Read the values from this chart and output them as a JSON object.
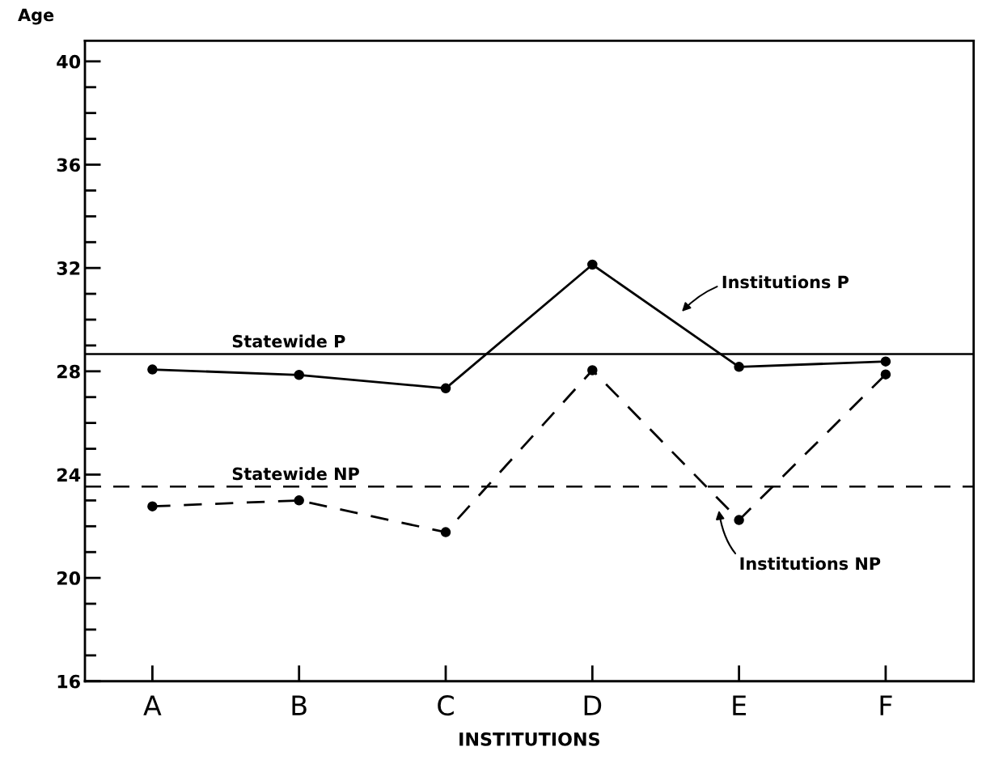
{
  "chart_data": {
    "type": "line",
    "xlabel": "INSTITUTIONS",
    "ylabel": "Age",
    "categories": [
      "A",
      "B",
      "C",
      "D",
      "E",
      "F"
    ],
    "series": [
      {
        "color": "#000000",
        "line_style": "solid",
        "values": [
          28.07,
          27.86,
          27.34,
          32.13,
          28.17,
          28.38
        ]
      },
      {
        "color": "#000000",
        "line_style": "dashed",
        "values": [
          22.77,
          23.0,
          21.77,
          28.04,
          22.24,
          27.88
        ]
      }
    ],
    "ylim": [
      16,
      40.8
    ],
    "yticks": [
      16,
      {
        "value": 17,
        "label": null
      },
      {
        "value": 18,
        "label": null
      },
      {
        "value": 19,
        "label": null
      },
      20,
      {
        "value": 21,
        "label": null
      },
      {
        "value": 22,
        "label": null
      },
      {
        "value": 23,
        "label": null
      },
      24,
      {
        "value": 25,
        "label": null
      },
      {
        "value": 26,
        "label": null
      },
      {
        "value": 27,
        "label": null
      },
      28,
      {
        "value": 29,
        "label": null
      },
      {
        "value": 30,
        "label": null
      },
      {
        "value": 31,
        "label": null
      },
      32,
      {
        "value": 33,
        "label": null
      },
      {
        "value": 34,
        "label": null
      },
      {
        "value": 35,
        "label": null
      },
      36,
      {
        "value": 37,
        "label": null
      },
      {
        "value": 38,
        "label": null
      },
      {
        "value": 39,
        "label": null
      },
      40
    ],
    "ref_lines": [
      {
        "axis": "y",
        "value": 28.67,
        "label": "Statewide P",
        "color": "#000000",
        "line_style": "solid"
      },
      {
        "axis": "y",
        "value": 23.54,
        "label": "Statewide NP",
        "color": "#000000",
        "line_style": "dashed"
      }
    ],
    "annotations": [
      "Institutions P",
      "Institutions NP"
    ],
    "marker": "circle",
    "grid": false,
    "legend": false
  }
}
